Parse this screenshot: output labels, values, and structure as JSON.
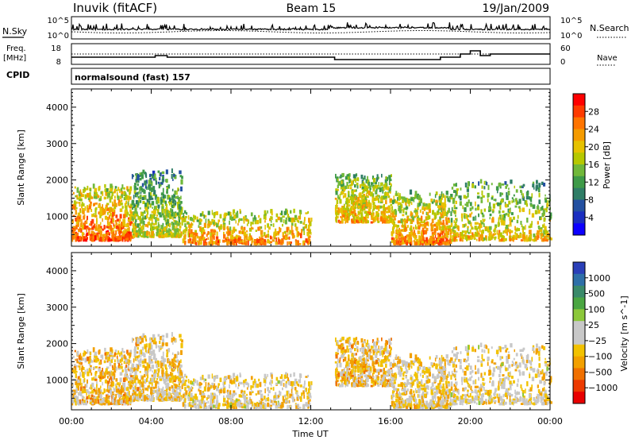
{
  "header": {
    "station": "Inuvik (fitACF)",
    "beam": "Beam 15",
    "date": "19/Jan/2009"
  },
  "panel_labels": {
    "nsky": "N.Sky",
    "nsearch": "N.Search",
    "freq_line1": "Freq.",
    "freq_line2": "[MHz]",
    "nave": "Nave",
    "cpid": "CPID",
    "cpid_value": "normalsound (fast) 157"
  },
  "noise_axis": {
    "left_top": "10^5",
    "left_bottom": "10^0",
    "right_top": "10^5",
    "right_bottom": "10^0"
  },
  "freq_axis": {
    "left_top": "18",
    "left_bottom": "8",
    "right_top": "60",
    "right_bottom": "0"
  },
  "colorbars": {
    "power": {
      "label": "Power [dB]",
      "ticks": [
        "28",
        "24",
        "20",
        "16",
        "12",
        "8",
        "4"
      ],
      "colors": [
        "#ff0000",
        "#ff3b00",
        "#ff7400",
        "#f59b00",
        "#e6c200",
        "#b6c800",
        "#70b83a",
        "#3e9a48",
        "#2f7d66",
        "#2350a0",
        "#1a2ec0",
        "#0c00ff"
      ]
    },
    "velocity": {
      "label": "Velocity [m s^-1]",
      "ticks": [
        "1000",
        "500",
        "100",
        "25",
        "−25",
        "−100",
        "−500",
        "−1000"
      ],
      "colors": [
        "#2a3fb8",
        "#2e6fa8",
        "#3a8a6a",
        "#4aa642",
        "#8cc83a",
        "#c8c8c8",
        "#c8c8c8",
        "#f2c200",
        "#f2a000",
        "#f07000",
        "#ec3a00",
        "#e80000"
      ]
    }
  },
  "chart_data": {
    "type": "heatmap",
    "panels": [
      {
        "name": "power",
        "quantity": "Power [dB]"
      },
      {
        "name": "velocity",
        "quantity": "Velocity [m s^-1]"
      }
    ],
    "xlabel": "Time UT",
    "x_ticks": [
      "00:00",
      "04:00",
      "08:00",
      "12:00",
      "16:00",
      "20:00",
      "00:00"
    ],
    "xlim": [
      0,
      24
    ],
    "ylabel": "Slant Range [km]",
    "y_ticks": [
      1000,
      2000,
      3000,
      4000
    ],
    "ylim": [
      180,
      4500
    ],
    "power_range_db": [
      0,
      30
    ],
    "velocity_range_ms": [
      -1000,
      1000
    ],
    "scatter_regions": [
      {
        "t": [
          0.0,
          3.0
        ],
        "range": [
          300,
          1800
        ],
        "power_db": 26,
        "velocity": -300
      },
      {
        "t": [
          3.0,
          5.5
        ],
        "range": [
          400,
          2200
        ],
        "power_db": 18,
        "velocity": -200
      },
      {
        "t": [
          5.5,
          12.0
        ],
        "range": [
          200,
          1100
        ],
        "power_db": 24,
        "velocity": -150
      },
      {
        "t": [
          13.2,
          16.0
        ],
        "range": [
          800,
          2100
        ],
        "power_db": 22,
        "velocity": -250
      },
      {
        "t": [
          16.0,
          19.0
        ],
        "range": [
          200,
          1600
        ],
        "power_db": 24,
        "velocity": -200
      },
      {
        "t": [
          19.0,
          24.0
        ],
        "range": [
          300,
          1900
        ],
        "power_db": 20,
        "velocity": -150
      }
    ]
  }
}
